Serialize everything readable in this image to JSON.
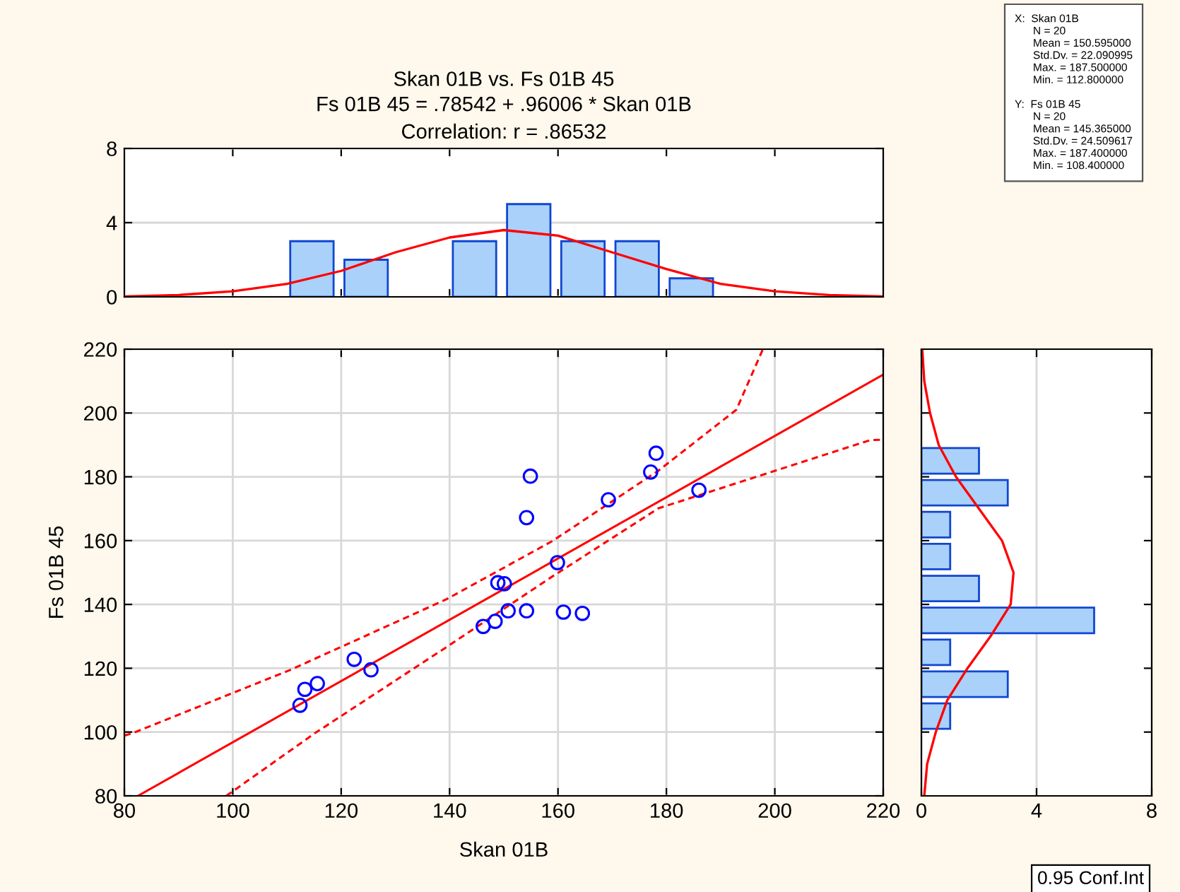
{
  "chart_data": [
    {
      "type": "histogram",
      "title": "Skan 01B vs. Fs 01B 45",
      "subtitle": "Fs 01B 45 = .78542 + .96006 * Skan 01B\nCorrelation: r = .86532",
      "bins": [
        99.6,
        109.6,
        119.6,
        129.6,
        139.6,
        149.6,
        159.6,
        169.6,
        179.6,
        189.6,
        199.6
      ],
      "values": [
        0,
        3,
        2,
        0,
        3,
        5,
        3,
        3,
        1,
        0
      ],
      "color": "#a9d1fa",
      "series": [
        {
          "type": "line",
          "color": "#ff0000",
          "x": [
            80,
            90,
            100,
            110,
            120,
            130,
            140,
            150,
            160,
            170,
            180,
            190,
            200,
            210,
            220
          ],
          "values": [
            0.02,
            0.1,
            0.3,
            0.7,
            1.4,
            2.4,
            3.2,
            3.6,
            3.3,
            2.4,
            1.5,
            0.7,
            0.3,
            0.1,
            0.02
          ]
        }
      ],
      "xlim": [
        80,
        220
      ],
      "xticks": [
        {
          "value": 100,
          "label": null
        },
        {
          "value": 120,
          "label": null
        },
        {
          "value": 140,
          "label": null
        },
        {
          "value": 160,
          "label": null
        },
        {
          "value": 180,
          "label": null
        },
        {
          "value": 200,
          "label": null
        }
      ],
      "ylim": [
        0,
        8
      ],
      "yticks": [
        0,
        4,
        8
      ],
      "grid": "y",
      "tick_labels": "y"
    },
    {
      "type": "scatter",
      "xlabel": "Skan 01B",
      "ylabel": "Fs 01B 45",
      "grid": true,
      "xlim": [
        80,
        220
      ],
      "xticks": [
        80,
        100,
        120,
        140,
        160,
        180,
        200,
        220
      ],
      "ylim": [
        80,
        220
      ],
      "yticks": [
        80,
        100,
        120,
        140,
        160,
        180,
        200,
        220
      ],
      "series": [
        {
          "type": "scatter",
          "marker": "circle",
          "color": "#0000ff",
          "x": [
            112.4,
            113.3,
            115.6,
            122.4,
            125.5,
            146.2,
            148.4,
            148.9,
            150.1,
            150.8,
            154.2,
            154.2,
            154.9,
            159.9,
            161.0,
            164.5,
            169.3,
            177.1,
            178.1,
            186.0
          ],
          "values": [
            108.4,
            113.4,
            115.2,
            122.8,
            119.5,
            133.1,
            134.7,
            146.8,
            146.5,
            138.0,
            138.0,
            167.2,
            180.2,
            153.1,
            137.6,
            137.2,
            172.8,
            181.5,
            187.4,
            175.8
          ]
        },
        {
          "type": "line",
          "color": "#ff0000",
          "line_style": "solid",
          "x": [
            82.5,
            220
          ],
          "values": [
            80,
            212.0
          ]
        },
        {
          "type": "line",
          "color": "#ff0000",
          "line_style": "dashed",
          "x": [
            80,
            81.6,
            110.5,
            139.4,
            158.9,
            178.5,
            192.9,
            197.8
          ],
          "values": [
            98.9,
            99.7,
            119.4,
            141.6,
            159.8,
            181.9,
            201,
            220
          ]
        },
        {
          "type": "line",
          "color": "#ff0000",
          "line_style": "dashed",
          "x": [
            98.8,
            115.2,
            139.4,
            158.9,
            178.5,
            217.6,
            220
          ],
          "values": [
            80,
            99.7,
            126.6,
            148.7,
            170.1,
            191.5,
            191.6
          ]
        }
      ],
      "annotations": [
        "X:  Skan 01B\n      N = 20\n      Mean = 150.595000\n      Std.Dv. = 22.090995\n      Max. = 187.500000\n      Min. = 112.800000\n\nY:  Fs 01B 45\n      N = 20\n      Mean = 145.365000\n      Std.Dv. = 24.509617\n      Max. = 187.400000\n      Min. = 108.400000",
        "0.95 Conf.Int"
      ]
    },
    {
      "type": "histogram",
      "orientation": "horizontal",
      "bins": [
        100,
        110,
        120,
        130,
        140,
        150,
        160,
        170,
        180,
        190
      ],
      "values": [
        1,
        3,
        1,
        6,
        2,
        1,
        1,
        3,
        2
      ],
      "color": "#a9d1fa",
      "series": [
        {
          "type": "line",
          "color": "#ff0000",
          "x": [
            80,
            90,
            100,
            110,
            120,
            130,
            140,
            150,
            160,
            170,
            180,
            190,
            200,
            210,
            220
          ],
          "values": [
            0.1,
            0.2,
            0.5,
            0.9,
            1.6,
            2.4,
            3.1,
            3.2,
            2.8,
            2.0,
            1.2,
            0.6,
            0.3,
            0.1,
            0.03
          ]
        }
      ],
      "xlim": [
        0,
        8
      ],
      "xticks": [
        0,
        4,
        8
      ],
      "ylim": [
        80,
        220
      ],
      "yticks": [
        {
          "value": 100,
          "label": null
        },
        {
          "value": 120,
          "label": null
        },
        {
          "value": 140,
          "label": null
        },
        {
          "value": 160,
          "label": null
        },
        {
          "value": 180,
          "label": null
        },
        {
          "value": 200,
          "label": null
        }
      ],
      "grid": "x",
      "tick_labels": "x"
    }
  ]
}
